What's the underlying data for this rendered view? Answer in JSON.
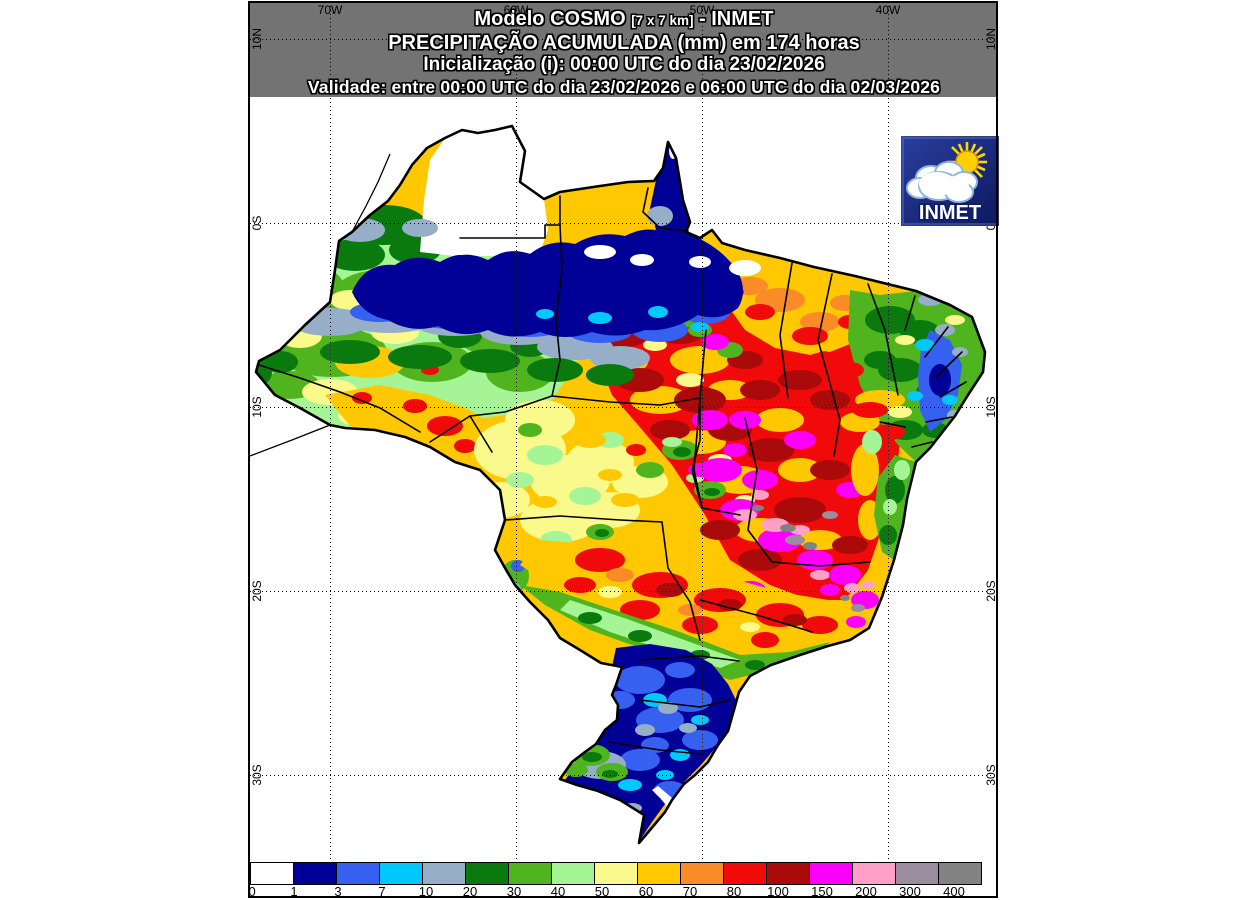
{
  "header": {
    "line1_model": "Modelo COSMO",
    "line1_res": "[7 x 7 km]",
    "line1_org": "- INMET",
    "line2": "PRECIPITAÇÃO ACUMULADA (mm) em 174 horas",
    "line3": "Inicialização (i): 00:00 UTC do dia 23/02/2026",
    "line4": "Validade: entre 00:00 UTC do dia 23/02/2026 e 06:00 UTC do dia 02/03/2026"
  },
  "axes": {
    "top_labels": [
      "70W",
      "60W",
      "50W",
      "40W"
    ],
    "left_labels": [
      "10N",
      "0S",
      "10S",
      "20S",
      "30S"
    ],
    "right_labels": [
      "10N",
      "0S",
      "10S",
      "20S",
      "30S"
    ]
  },
  "legend": {
    "labels": [
      "0",
      "1",
      "3",
      "7",
      "10",
      "20",
      "30",
      "40",
      "50",
      "60",
      "70",
      "80",
      "100",
      "150",
      "200",
      "300",
      "400"
    ],
    "colors": [
      "#FFFFFF",
      "#000096",
      "#3560F0",
      "#00C8FA",
      "#96AEC8",
      "#0A7A0F",
      "#50B41E",
      "#A5F596",
      "#FAFA8C",
      "#FFC800",
      "#FA8C28",
      "#F00A0A",
      "#AA0A0A",
      "#FA00FA",
      "#FFA0C8",
      "#9B8CA0",
      "#828282"
    ]
  },
  "logo": {
    "text": "INMET"
  }
}
